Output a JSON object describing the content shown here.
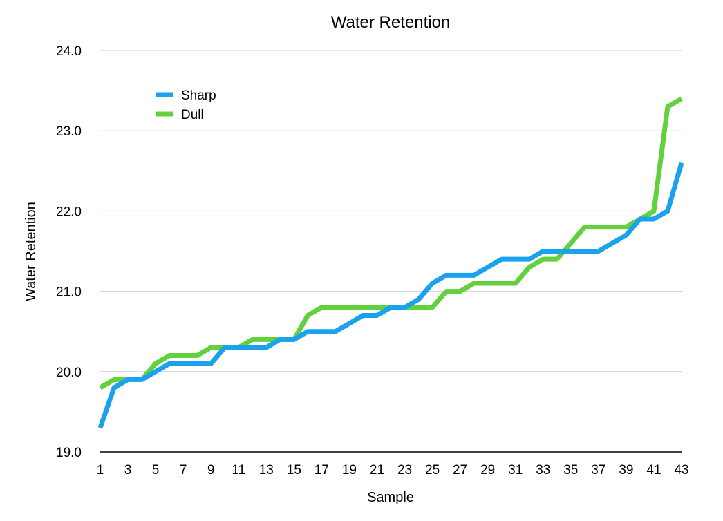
{
  "chart_data": {
    "type": "line",
    "title": "Water Retention",
    "xlabel": "Sample",
    "ylabel": "Water Retention",
    "x": [
      1,
      2,
      3,
      4,
      5,
      6,
      7,
      8,
      9,
      10,
      11,
      12,
      13,
      14,
      15,
      16,
      17,
      18,
      19,
      20,
      21,
      22,
      23,
      24,
      25,
      26,
      27,
      28,
      29,
      30,
      31,
      32,
      33,
      34,
      35,
      36,
      37,
      38,
      39,
      40,
      41,
      42,
      43
    ],
    "x_tick_labels": [
      "1",
      "3",
      "5",
      "7",
      "9",
      "11",
      "13",
      "15",
      "17",
      "19",
      "21",
      "23",
      "25",
      "27",
      "29",
      "31",
      "33",
      "35",
      "37",
      "39",
      "41",
      "43"
    ],
    "y_tick_labels": [
      "19.0",
      "20.0",
      "21.0",
      "22.0",
      "23.0",
      "24.0"
    ],
    "ylim": [
      19.0,
      24.0
    ],
    "grid": true,
    "legend_position": "top-left",
    "series": [
      {
        "name": "Sharp",
        "color": "#1aa3ec",
        "values": [
          19.3,
          19.8,
          19.9,
          19.9,
          20.0,
          20.1,
          20.1,
          20.1,
          20.1,
          20.3,
          20.3,
          20.3,
          20.3,
          20.4,
          20.4,
          20.5,
          20.5,
          20.5,
          20.6,
          20.7,
          20.7,
          20.8,
          20.8,
          20.9,
          21.1,
          21.2,
          21.2,
          21.2,
          21.3,
          21.4,
          21.4,
          21.4,
          21.5,
          21.5,
          21.5,
          21.5,
          21.5,
          21.6,
          21.7,
          21.9,
          21.9,
          22.0,
          22.6
        ]
      },
      {
        "name": "Dull",
        "color": "#63d03d",
        "values": [
          19.8,
          19.9,
          19.9,
          19.9,
          20.1,
          20.2,
          20.2,
          20.2,
          20.3,
          20.3,
          20.3,
          20.4,
          20.4,
          20.4,
          20.4,
          20.7,
          20.8,
          20.8,
          20.8,
          20.8,
          20.8,
          20.8,
          20.8,
          20.8,
          20.8,
          21.0,
          21.0,
          21.1,
          21.1,
          21.1,
          21.1,
          21.3,
          21.4,
          21.4,
          21.6,
          21.8,
          21.8,
          21.8,
          21.8,
          21.9,
          22.0,
          23.3,
          23.4
        ]
      }
    ]
  }
}
